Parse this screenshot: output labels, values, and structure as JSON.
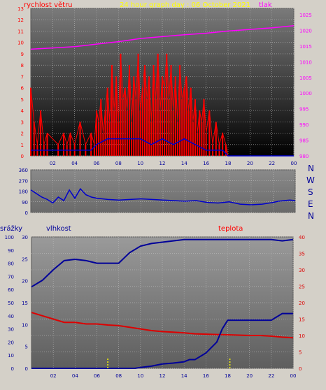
{
  "top_left_label": "rychlost větru",
  "top_title": "24 hour graph day : 06 October 2021",
  "top_right_label": "tlak",
  "directions": [
    "N",
    "W",
    "S",
    "E",
    "N"
  ],
  "bottom_left_label": "srážky",
  "bottom_mid_label": "vlhkost",
  "bottom_right_label": "teplota",
  "colors": {
    "wind": "#ff0000",
    "wind_dir": "#0000cc",
    "pressure": "#ff00ff",
    "temperature": "#dd0000",
    "humidity": "#000099",
    "rain": "#0000cc",
    "title": "#ffff00",
    "background": "#d4d0c8"
  },
  "chart_data": [
    {
      "type": "line",
      "title": "24 hour graph day : 06 October 2021",
      "x_ticks": [
        "02",
        "04",
        "06",
        "08",
        "10",
        "12",
        "14",
        "16",
        "18",
        "20",
        "22",
        "00"
      ],
      "y_left_label": "rychlost větru",
      "y_left_ticks": [
        0,
        1,
        2,
        3,
        4,
        5,
        6,
        7,
        8,
        9,
        10,
        11,
        12,
        13
      ],
      "y_left_range": [
        0,
        13
      ],
      "y_right_label": "tlak",
      "y_right_ticks": [
        980,
        985,
        990,
        995,
        1000,
        1005,
        1010,
        1015,
        1020,
        1025
      ],
      "y_right_range": [
        980,
        1027
      ],
      "grid": true,
      "series": [
        {
          "name": "tlak",
          "axis": "right",
          "x": [
            0,
            2,
            4,
            6,
            8,
            10,
            12,
            14,
            16,
            18,
            20,
            22,
            24
          ],
          "values": [
            1014.0,
            1014.4,
            1014.8,
            1015.6,
            1016.4,
            1017.4,
            1018.0,
            1018.6,
            1019.1,
            1019.8,
            1020.3,
            1020.8,
            1021.5
          ]
        },
        {
          "name": "gust",
          "axis": "left",
          "x": [
            0,
            0.3,
            0.6,
            0.9,
            1.2,
            1.5,
            2.5,
            3.0,
            3.3,
            3.6,
            4.0,
            4.5,
            5.0,
            5.5,
            5.8,
            6.0,
            6.2,
            6.4,
            6.6,
            6.8,
            7.0,
            7.2,
            7.4,
            7.6,
            7.8,
            8.0,
            8.2,
            8.4,
            8.6,
            8.8,
            9.0,
            9.2,
            9.4,
            9.6,
            9.8,
            10.0,
            10.2,
            10.4,
            10.6,
            10.8,
            11.0,
            11.2,
            11.4,
            11.6,
            11.8,
            12.0,
            12.2,
            12.4,
            12.6,
            12.8,
            13.0,
            13.2,
            13.4,
            13.6,
            13.8,
            14.0,
            14.2,
            14.4,
            14.6,
            14.8,
            15.0,
            15.2,
            15.4,
            15.6,
            15.8,
            16.0,
            16.3,
            16.6,
            16.9,
            17.2,
            17.5,
            17.8,
            18.0,
            24.0
          ],
          "values": [
            6,
            3,
            1,
            4,
            1,
            2,
            1,
            2,
            1,
            2,
            1,
            3,
            1,
            2,
            1,
            4,
            3,
            5,
            2,
            4,
            6,
            3,
            8,
            4,
            7,
            3,
            9,
            5,
            6,
            4,
            8,
            3,
            7,
            5,
            9,
            4,
            6,
            8,
            5,
            7,
            3,
            8,
            5,
            9,
            4,
            7,
            6,
            9,
            5,
            8,
            4,
            7,
            3,
            8,
            5,
            6,
            7,
            4,
            6,
            3,
            5,
            2,
            4,
            3,
            5,
            2,
            4,
            1,
            3,
            1,
            2,
            1,
            0,
            0
          ]
        },
        {
          "name": "wind",
          "axis": "left",
          "x": [
            0,
            2,
            4,
            5.5,
            6,
            7,
            8,
            9,
            10,
            11,
            12,
            13,
            14,
            15,
            16,
            17,
            17.5,
            18,
            24
          ],
          "values": [
            0.5,
            0.5,
            0.5,
            0.5,
            1,
            1.5,
            1.5,
            1.5,
            1.5,
            1,
            1.5,
            1,
            1.5,
            1,
            0.5,
            0.5,
            0.5,
            0,
            0
          ]
        }
      ]
    },
    {
      "type": "line",
      "x_ticks": [
        "02",
        "04",
        "06",
        "08",
        "10",
        "12",
        "14",
        "16",
        "18",
        "20",
        "22",
        "00"
      ],
      "y_ticks": [
        0,
        90,
        180,
        270,
        360
      ],
      "y_range": [
        0,
        360
      ],
      "right_labels": [
        "N",
        "W",
        "S",
        "E",
        "N"
      ],
      "series": [
        {
          "name": "wind direction",
          "x": [
            0,
            0.5,
            1,
            1.5,
            2,
            2.5,
            3,
            3.5,
            4,
            4.5,
            5,
            5.5,
            6,
            7,
            8,
            9,
            10,
            11,
            12,
            13,
            14,
            15,
            16,
            17,
            18,
            19,
            20,
            21,
            22,
            22.5,
            23,
            23.5,
            24
          ],
          "values": [
            190,
            160,
            130,
            110,
            80,
            130,
            100,
            190,
            120,
            200,
            150,
            130,
            120,
            110,
            105,
            110,
            115,
            110,
            105,
            100,
            95,
            100,
            85,
            80,
            90,
            70,
            65,
            70,
            85,
            95,
            100,
            105,
            100
          ]
        }
      ]
    },
    {
      "type": "line",
      "x_ticks": [
        "02",
        "04",
        "06",
        "08",
        "10",
        "12",
        "14",
        "16",
        "18",
        "20",
        "22",
        "00"
      ],
      "y_left_label": "srážky",
      "y_left_ticks": [
        0,
        10,
        20,
        30,
        40,
        50,
        60,
        70,
        80,
        90,
        100
      ],
      "y_mid_label": "vlhkost",
      "y_mid_ticks": [
        0,
        5,
        10,
        15,
        20,
        25,
        30
      ],
      "y_right_label": "teplota",
      "y_right_ticks": [
        0,
        5,
        10,
        15,
        20,
        25,
        30,
        35,
        40
      ],
      "y_left_range": [
        0,
        100
      ],
      "y_mid_range": [
        0,
        30
      ],
      "y_right_range": [
        0,
        40
      ],
      "series": [
        {
          "name": "vlhkost",
          "axis": "left",
          "x": [
            0,
            1,
            2,
            3,
            4,
            5,
            6,
            7,
            8,
            9,
            10,
            11,
            12,
            13,
            14,
            15,
            16,
            17,
            18,
            19,
            20,
            21,
            22,
            23,
            24
          ],
          "values": [
            62,
            67,
            75,
            82,
            83,
            82,
            80,
            80,
            80,
            88,
            93,
            95,
            96,
            97,
            98,
            98,
            98,
            98,
            98,
            98,
            98,
            98,
            98,
            97,
            98
          ]
        },
        {
          "name": "teplota",
          "axis": "right",
          "x": [
            0,
            1,
            2,
            3,
            4,
            5,
            6,
            7,
            8,
            9,
            10,
            11,
            12,
            13,
            14,
            15,
            16,
            17,
            18,
            19,
            20,
            21,
            22,
            23,
            24
          ],
          "values": [
            17,
            16,
            15,
            14,
            14,
            13.5,
            13.5,
            13.2,
            13,
            12.5,
            12,
            11.5,
            11.2,
            11,
            10.8,
            10.5,
            10.4,
            10.3,
            10.2,
            10.1,
            10,
            10,
            9.8,
            9.5,
            9.3
          ]
        },
        {
          "name": "srážky",
          "axis": "mid",
          "x": [
            0,
            9.5,
            10,
            11,
            12,
            13,
            14,
            14.5,
            15,
            16,
            17,
            17.5,
            18,
            19,
            20,
            21,
            22,
            23,
            23.5,
            24
          ],
          "values": [
            0,
            0,
            0.2,
            0.5,
            1,
            1.2,
            1.5,
            2,
            2,
            3.5,
            6,
            9,
            11,
            11,
            11,
            11,
            11,
            12.5,
            12.5,
            12.5
          ]
        },
        {
          "name": "rain-rate",
          "axis": "mid",
          "x": [
            7,
            18.2
          ],
          "values": [
            2.5,
            2.5
          ]
        }
      ]
    }
  ]
}
